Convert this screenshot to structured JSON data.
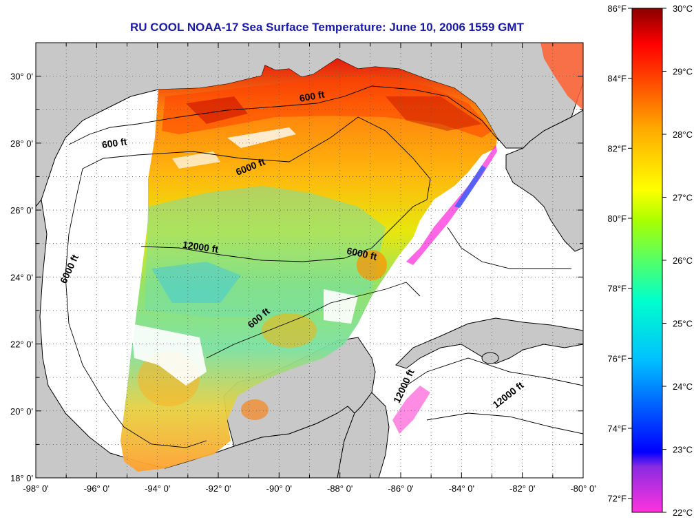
{
  "title": "RU COOL  NOAA-17  Sea Surface Temperature:  June 10, 2006 1559 GMT",
  "map": {
    "lon_range": [
      -98,
      -80
    ],
    "lat_range": [
      18,
      31
    ],
    "lon_tick_labels": [
      {
        "value": -98,
        "text": "-98° 0'"
      },
      {
        "value": -96,
        "text": "-96° 0'"
      },
      {
        "value": -94,
        "text": "-94° 0'"
      },
      {
        "value": -92,
        "text": "-92° 0'"
      },
      {
        "value": -90,
        "text": "-90° 0'"
      },
      {
        "value": -88,
        "text": "-88° 0'"
      },
      {
        "value": -86,
        "text": "-86° 0'"
      },
      {
        "value": -84,
        "text": "-84° 0'"
      },
      {
        "value": -82,
        "text": "-82° 0'"
      },
      {
        "value": -80,
        "text": "-80° 0'"
      }
    ],
    "lat_tick_labels": [
      {
        "value": 18,
        "text": "18° 0'"
      },
      {
        "value": 20,
        "text": "20° 0'"
      },
      {
        "value": 22,
        "text": "22° 0'"
      },
      {
        "value": 24,
        "text": "24° 0'"
      },
      {
        "value": 26,
        "text": "26° 0'"
      },
      {
        "value": 28,
        "text": "28° 0'"
      },
      {
        "value": 30,
        "text": "30° 0'"
      }
    ],
    "gridlines": true,
    "land_color": "#c8c8c8",
    "ocean_color": "#ffffff",
    "contour_labels": [
      {
        "text": "600 ft",
        "lon": -88.9,
        "lat": 29.3,
        "rotate": -10
      },
      {
        "text": "600 ft",
        "lon": -95.4,
        "lat": 27.9,
        "rotate": -8
      },
      {
        "text": "6000 ft",
        "lon": -90.9,
        "lat": 27.2,
        "rotate": -22
      },
      {
        "text": "12000 ft",
        "lon": -92.6,
        "lat": 24.8,
        "rotate": 8
      },
      {
        "text": "6000 ft",
        "lon": -96.8,
        "lat": 24.2,
        "rotate": -65
      },
      {
        "text": "6000 ft",
        "lon": -87.3,
        "lat": 24.6,
        "rotate": 12
      },
      {
        "text": "600 ft",
        "lon": -90.6,
        "lat": 22.7,
        "rotate": -40
      },
      {
        "text": "12000 ft",
        "lon": -85.8,
        "lat": 20.7,
        "rotate": -65
      },
      {
        "text": "12000 ft",
        "lon": -82.4,
        "lat": 20.4,
        "rotate": -38
      }
    ]
  },
  "colorbar": {
    "celsius_labels": [
      "30°C",
      "29°C",
      "28°C",
      "27°C",
      "26°C",
      "25°C",
      "24°C",
      "23°C",
      "22°C"
    ],
    "fahrenheit_labels": [
      {
        "text": "86°F",
        "value_f": 86
      },
      {
        "text": "84°F",
        "value_f": 84
      },
      {
        "text": "82°F",
        "value_f": 82
      },
      {
        "text": "80°F",
        "value_f": 80
      },
      {
        "text": "78°F",
        "value_f": 78
      },
      {
        "text": "76°F",
        "value_f": 76
      },
      {
        "text": "74°F",
        "value_f": 74
      },
      {
        "text": "72°F",
        "value_f": 72
      }
    ],
    "range_c": [
      22,
      30
    ],
    "colors": [
      "#ff33dd",
      "#8a2be2",
      "#0000ff",
      "#00bfff",
      "#00ffcc",
      "#7fff00",
      "#ffff00",
      "#ffaa00",
      "#ff5500",
      "#ff0000",
      "#880000"
    ]
  }
}
